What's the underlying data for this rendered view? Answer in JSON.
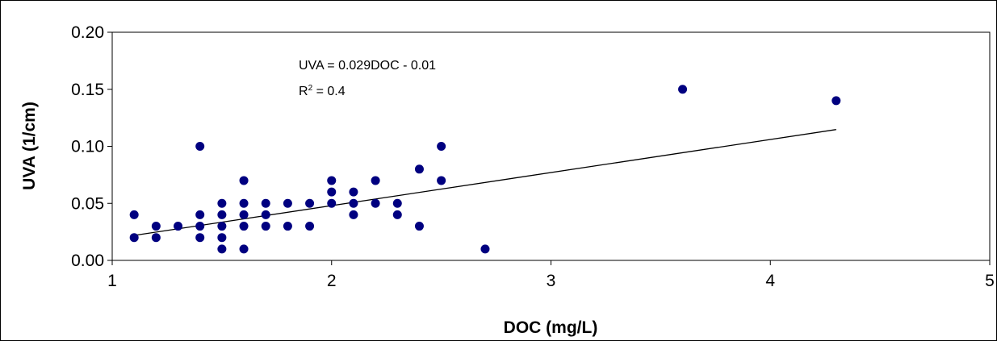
{
  "chart_data": {
    "type": "scatter",
    "title": "",
    "xlabel": "DOC (mg/L)",
    "ylabel": "UVA (1/cm)",
    "xlim": [
      1,
      5
    ],
    "ylim": [
      0,
      0.2
    ],
    "x_ticks": [
      "1",
      "2",
      "3",
      "4",
      "5"
    ],
    "y_ticks": [
      "0.00",
      "0.05",
      "0.10",
      "0.15",
      "0.20"
    ],
    "grid": false,
    "legend": "none",
    "marker_color": "#000080",
    "trendline": {
      "label": "UVA = 0.029DOC - 0.01",
      "r2_prefix": "R",
      "r2_sup": "2",
      "r2_suffix": " = 0.4",
      "slope": 0.029,
      "intercept": -0.01,
      "x_range": [
        1.1,
        4.3
      ]
    },
    "series": [
      {
        "points": [
          [
            1.1,
            0.04
          ],
          [
            1.1,
            0.02
          ],
          [
            1.2,
            0.03
          ],
          [
            1.2,
            0.02
          ],
          [
            1.3,
            0.03
          ],
          [
            1.4,
            0.1
          ],
          [
            1.4,
            0.04
          ],
          [
            1.4,
            0.03
          ],
          [
            1.4,
            0.02
          ],
          [
            1.5,
            0.05
          ],
          [
            1.5,
            0.04
          ],
          [
            1.5,
            0.03
          ],
          [
            1.5,
            0.02
          ],
          [
            1.5,
            0.01
          ],
          [
            1.6,
            0.07
          ],
          [
            1.6,
            0.05
          ],
          [
            1.6,
            0.04
          ],
          [
            1.6,
            0.03
          ],
          [
            1.6,
            0.01
          ],
          [
            1.7,
            0.05
          ],
          [
            1.7,
            0.04
          ],
          [
            1.7,
            0.03
          ],
          [
            1.8,
            0.05
          ],
          [
            1.8,
            0.03
          ],
          [
            1.9,
            0.05
          ],
          [
            1.9,
            0.03
          ],
          [
            2.0,
            0.07
          ],
          [
            2.0,
            0.06
          ],
          [
            2.0,
            0.05
          ],
          [
            2.1,
            0.06
          ],
          [
            2.1,
            0.05
          ],
          [
            2.1,
            0.04
          ],
          [
            2.2,
            0.07
          ],
          [
            2.2,
            0.05
          ],
          [
            2.3,
            0.05
          ],
          [
            2.3,
            0.04
          ],
          [
            2.4,
            0.08
          ],
          [
            2.4,
            0.03
          ],
          [
            2.5,
            0.1
          ],
          [
            2.5,
            0.07
          ],
          [
            2.7,
            0.01
          ],
          [
            3.6,
            0.15
          ],
          [
            4.3,
            0.14
          ]
        ]
      }
    ]
  }
}
